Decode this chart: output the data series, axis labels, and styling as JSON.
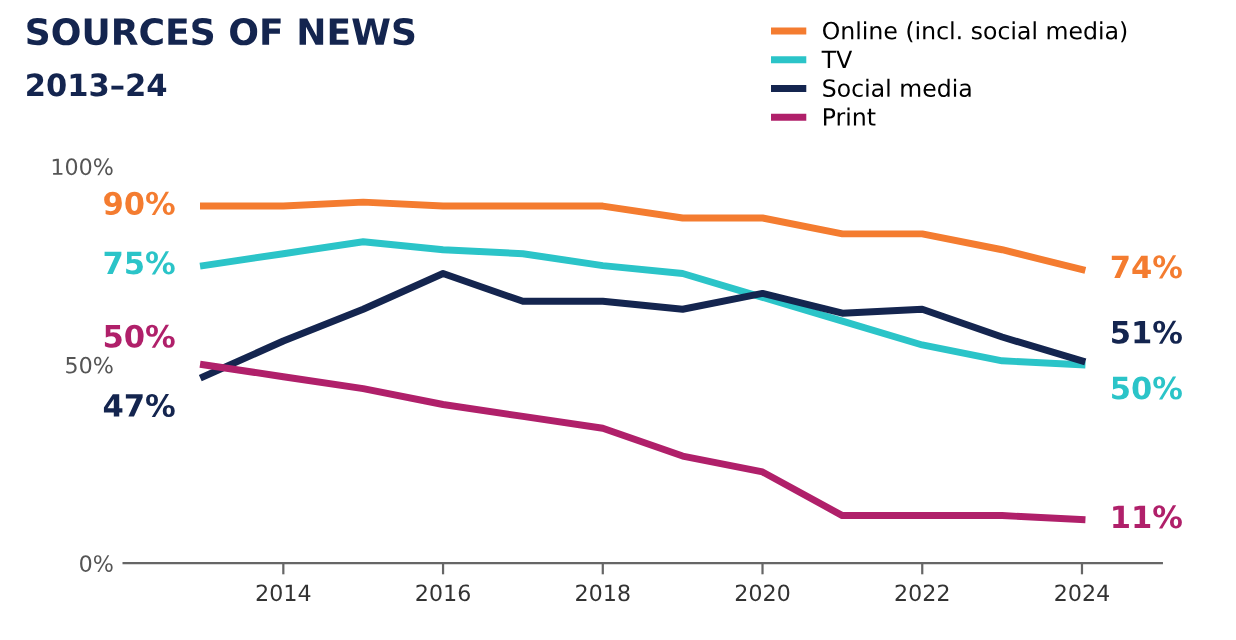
{
  "chart_data": {
    "type": "line",
    "title": "SOURCES OF NEWS",
    "subtitle": "2013–24",
    "x": [
      2013,
      2014,
      2015,
      2016,
      2017,
      2018,
      2019,
      2020,
      2021,
      2022,
      2023,
      2024
    ],
    "series": [
      {
        "name": "Online (incl. social media)",
        "color": "#f47c30",
        "values": [
          90,
          90,
          91,
          90,
          90,
          90,
          87,
          87,
          83,
          83,
          79,
          74
        ],
        "value_labels": [
          "90%",
          null,
          null,
          null,
          null,
          null,
          null,
          null,
          null,
          null,
          null,
          "74%"
        ]
      },
      {
        "name": "TV",
        "color": "#2bc4c8",
        "values": [
          75,
          78,
          81,
          79,
          78,
          75,
          73,
          67,
          61,
          55,
          51,
          50
        ],
        "value_labels": [
          "75%",
          null,
          null,
          null,
          null,
          null,
          null,
          null,
          null,
          null,
          null,
          "50%"
        ]
      },
      {
        "name": "Social media",
        "color": "#14254f",
        "values": [
          47,
          56,
          64,
          73,
          66,
          66,
          64,
          68,
          63,
          64,
          57,
          51
        ],
        "value_labels": [
          "47%",
          null,
          null,
          null,
          null,
          null,
          null,
          null,
          null,
          null,
          null,
          "51%"
        ]
      },
      {
        "name": "Print",
        "color": "#b0206a",
        "values": [
          50,
          47,
          44,
          40,
          37,
          34,
          27,
          23,
          12,
          12,
          12,
          11
        ],
        "value_labels": [
          "50%",
          null,
          null,
          null,
          null,
          null,
          null,
          null,
          null,
          null,
          null,
          "11%"
        ]
      }
    ],
    "xlim": [
      2012,
      2025
    ],
    "xticks": [
      2014,
      2016,
      2018,
      2020,
      2022,
      2024
    ],
    "ylim": [
      0,
      100
    ],
    "yticks": [
      {
        "value": 0,
        "label": "0%"
      },
      {
        "value": 50,
        "label": "50%"
      },
      {
        "value": 100,
        "label": "100%"
      }
    ],
    "grid": false,
    "legend": "top right",
    "marker": "none",
    "line_style": "solid"
  }
}
